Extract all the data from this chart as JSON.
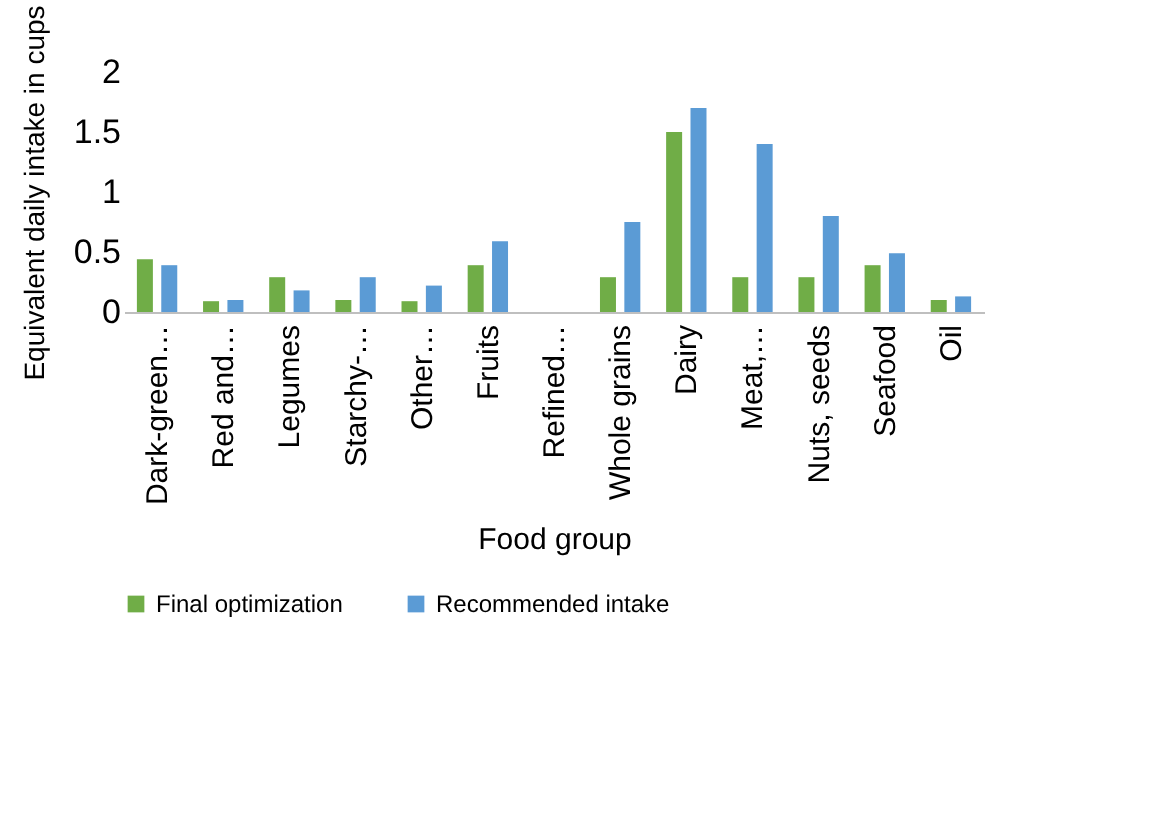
{
  "chart_data": {
    "type": "bar",
    "xlabel": "Food group",
    "ylabel": "Equivalent daily intake in cups",
    "categories": [
      "Dark-green…",
      "Red and…",
      "Legumes",
      "Starchy-…",
      "Other…",
      "Fruits",
      "Refined…",
      "Whole grains",
      "Dairy",
      "Meat,…",
      "Nuts, seeds",
      "Seafood",
      "Oil"
    ],
    "series": [
      {
        "name": "Final optimization",
        "color": "#70ad47",
        "values": [
          0.44,
          0.09,
          0.29,
          0.1,
          0.09,
          0.39,
          0,
          0.29,
          1.5,
          0.29,
          0.29,
          0.39,
          0.1
        ]
      },
      {
        "name": "Recommended intake",
        "color": "#5b9bd5",
        "values": [
          0.39,
          0.1,
          0.18,
          0.29,
          0.22,
          0.59,
          0,
          0.75,
          1.7,
          1.4,
          0.8,
          0.49,
          0.13
        ]
      }
    ],
    "ylim": [
      0,
      2
    ],
    "yticks": [
      0,
      0.5,
      1,
      1.5,
      2
    ],
    "grid": false,
    "legend": "bottom"
  }
}
